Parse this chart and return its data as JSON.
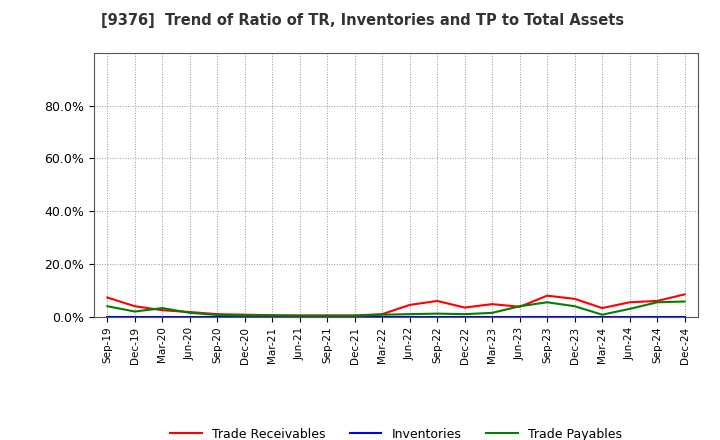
{
  "title": "[9376]  Trend of Ratio of TR, Inventories and TP to Total Assets",
  "x_labels": [
    "Sep-19",
    "Dec-19",
    "Mar-20",
    "Jun-20",
    "Sep-20",
    "Dec-20",
    "Mar-21",
    "Jun-21",
    "Sep-21",
    "Dec-21",
    "Mar-22",
    "Jun-22",
    "Sep-22",
    "Dec-22",
    "Mar-23",
    "Jun-23",
    "Sep-23",
    "Dec-23",
    "Mar-24",
    "Jun-24",
    "Sep-24",
    "Dec-24"
  ],
  "trade_receivables": [
    0.073,
    0.04,
    0.025,
    0.018,
    0.01,
    0.008,
    0.006,
    0.005,
    0.005,
    0.005,
    0.01,
    0.045,
    0.06,
    0.035,
    0.048,
    0.038,
    0.08,
    0.068,
    0.033,
    0.055,
    0.06,
    0.085
  ],
  "inventories": [
    0.001,
    0.001,
    0.001,
    0.001,
    0.001,
    0.001,
    0.001,
    0.001,
    0.001,
    0.001,
    0.001,
    0.001,
    0.001,
    0.001,
    0.001,
    0.001,
    0.001,
    0.001,
    0.001,
    0.001,
    0.001,
    0.001
  ],
  "trade_payables": [
    0.04,
    0.02,
    0.033,
    0.015,
    0.007,
    0.005,
    0.005,
    0.004,
    0.004,
    0.004,
    0.008,
    0.01,
    0.012,
    0.01,
    0.015,
    0.04,
    0.055,
    0.04,
    0.008,
    0.03,
    0.055,
    0.058
  ],
  "tr_color": "#FF0000",
  "inv_color": "#0000FF",
  "tp_color": "#008000",
  "ylim": [
    0,
    1.0
  ],
  "yticks": [
    0.0,
    0.2,
    0.4,
    0.6,
    0.8
  ],
  "ytick_labels": [
    "0.0%",
    "20.0%",
    "40.0%",
    "60.0%",
    "80.0%"
  ],
  "legend_tr": "Trade Receivables",
  "legend_inv": "Inventories",
  "legend_tp": "Trade Payables",
  "bg_color": "#FFFFFF",
  "plot_bg_color": "#FFFFFF",
  "grid_color": "#999999"
}
